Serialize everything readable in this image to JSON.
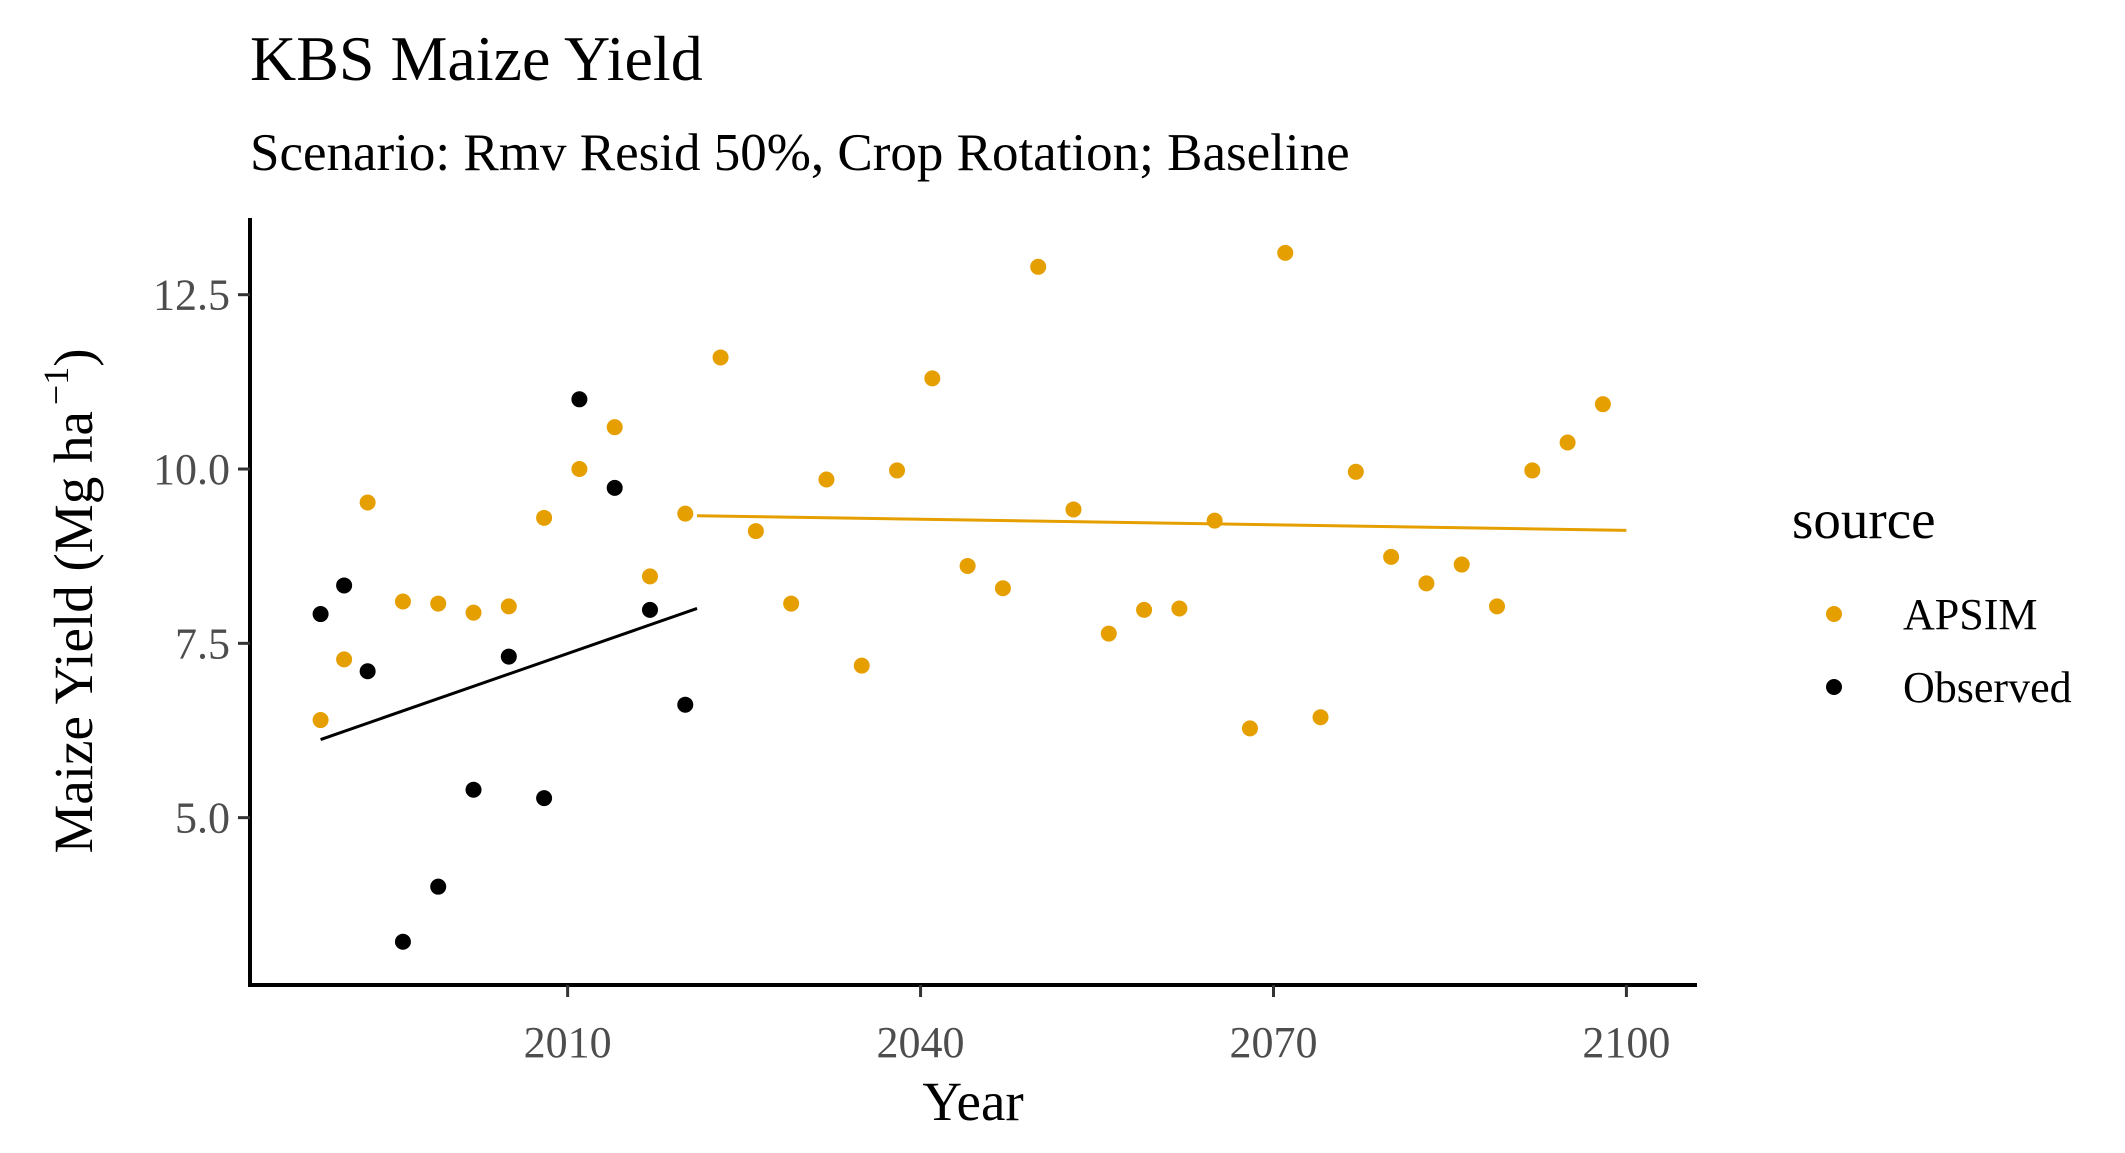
{
  "chart_data": {
    "type": "scatter",
    "title": "KBS Maize Yield",
    "subtitle": "Scenario: Rmv Resid 50%, Crop Rotation; Baseline",
    "xlabel": "Year",
    "ylabel": "Maize Yield (Mg ha",
    "ylabel_superscript": "−1",
    "ylabel_suffix": ")",
    "xlim": [
      1983,
      2106
    ],
    "ylim": [
      2.6,
      13.6
    ],
    "xticks": [
      2010,
      2040,
      2070,
      2100
    ],
    "yticks": [
      5.0,
      7.5,
      10.0,
      12.5
    ],
    "xtick_labels": [
      "2010",
      "2040",
      "2070",
      "2100"
    ],
    "ytick_labels": [
      "5.0",
      "7.5",
      "10.0",
      "12.5"
    ],
    "grid": false,
    "legend_title": "source",
    "legend_position": "right",
    "series": [
      {
        "name": "APSIM",
        "color": "#E69F00",
        "x": [
          1989,
          1991,
          1993,
          1996,
          1999,
          2002,
          2005,
          2008,
          2011,
          2014,
          2017,
          2020,
          2023,
          2026,
          2029,
          2032,
          2035,
          2038,
          2041,
          2044,
          2047,
          2050,
          2053,
          2056,
          2059,
          2062,
          2065,
          2068,
          2071,
          2074,
          2077,
          2080,
          2083,
          2086,
          2089,
          2092,
          2095,
          2098
        ],
        "y": [
          6.4,
          7.27,
          9.52,
          8.1,
          8.07,
          7.94,
          8.03,
          9.3,
          10.0,
          10.6,
          8.46,
          9.36,
          11.6,
          9.11,
          8.07,
          9.85,
          7.18,
          9.98,
          11.3,
          8.61,
          8.29,
          12.9,
          9.42,
          7.64,
          7.98,
          8.0,
          9.26,
          6.28,
          13.1,
          6.44,
          9.96,
          8.74,
          8.36,
          8.63,
          8.03,
          9.98,
          10.38,
          10.93
        ]
      },
      {
        "name": "Observed",
        "color": "#000000",
        "x": [
          1989,
          1991,
          1993,
          1996,
          1999,
          2002,
          2005,
          2008,
          2011,
          2014,
          2017,
          2020
        ],
        "y": [
          7.92,
          8.33,
          7.1,
          3.22,
          4.01,
          5.4,
          7.31,
          5.28,
          11.0,
          9.73,
          7.98,
          6.62
        ]
      }
    ],
    "trendlines": [
      {
        "series": "Observed",
        "color": "#000000",
        "x": [
          1989,
          2021
        ],
        "y": [
          6.12,
          8.0
        ]
      },
      {
        "series": "APSIM",
        "color": "#E69F00",
        "x": [
          2021,
          2100
        ],
        "y": [
          9.33,
          9.12
        ]
      }
    ]
  }
}
